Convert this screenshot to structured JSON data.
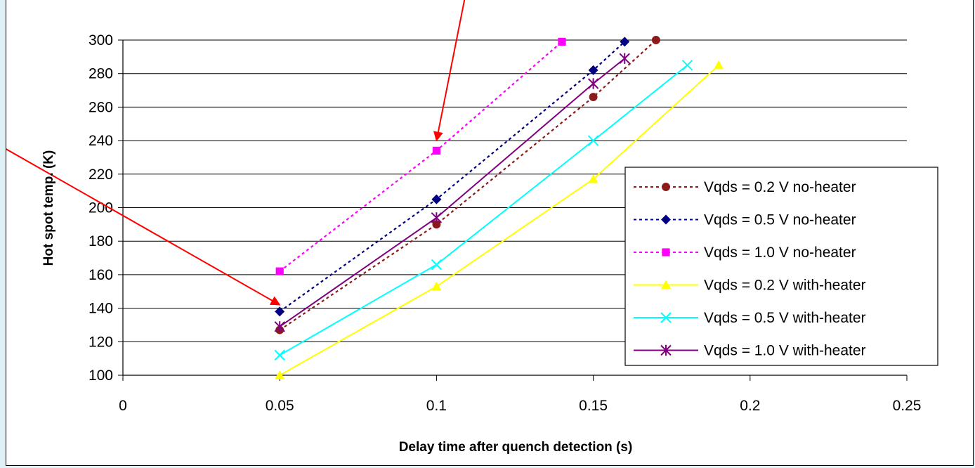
{
  "chart_data": {
    "type": "line",
    "xlabel": "Delay time after quench detection (s)",
    "ylabel": "Hot spot temp. (K)",
    "xlim": [
      0,
      0.25
    ],
    "ylim": [
      100,
      300
    ],
    "x_ticks": [
      "0",
      "0.05",
      "0.1",
      "0.15",
      "0.2",
      "0.25"
    ],
    "y_ticks": [
      "100",
      "120",
      "140",
      "160",
      "180",
      "200",
      "220",
      "240",
      "260",
      "280",
      "300"
    ],
    "grid": "horizontal major gridlines",
    "legend_position": "right",
    "series": [
      {
        "name": "Vqds = 0.2 V no-heater",
        "color": "#8b1a1a",
        "dash": "dotted",
        "marker": "circle",
        "x": [
          0.05,
          0.1,
          0.15,
          0.17
        ],
        "y": [
          127,
          190,
          266,
          300
        ]
      },
      {
        "name": "Vqds = 0.5 V no-heater",
        "color": "#000080",
        "dash": "dotted",
        "marker": "diamond",
        "x": [
          0.05,
          0.1,
          0.15,
          0.16
        ],
        "y": [
          138,
          205,
          282,
          299
        ]
      },
      {
        "name": "Vqds = 1.0 V no-heater",
        "color": "#ff00ff",
        "dash": "dotted",
        "marker": "square",
        "x": [
          0.05,
          0.1,
          0.14
        ],
        "y": [
          162,
          234,
          299
        ]
      },
      {
        "name": "Vqds = 0.2 V with-heater",
        "color": "#ffff00",
        "dash": "solid",
        "marker": "triangle",
        "x": [
          0.05,
          0.1,
          0.15,
          0.19
        ],
        "y": [
          100,
          153,
          217,
          285
        ]
      },
      {
        "name": "Vqds = 0.5 V with-heater",
        "color": "#00ffff",
        "dash": "solid",
        "marker": "x",
        "x": [
          0.05,
          0.1,
          0.15,
          0.18
        ],
        "y": [
          112,
          166,
          240,
          285
        ]
      },
      {
        "name": "Vqds = 1.0 V with-heater",
        "color": "#800080",
        "dash": "solid",
        "marker": "asterisk",
        "x": [
          0.05,
          0.1,
          0.15,
          0.16
        ],
        "y": [
          129,
          194,
          274,
          289
        ]
      }
    ],
    "annotations": [
      {
        "type": "arrow",
        "color": "#ff0000",
        "from": [
          -0.057,
          256
        ],
        "to": [
          0.05,
          142
        ]
      },
      {
        "type": "arrow",
        "color": "#ff0000",
        "from": [
          0.112,
          353
        ],
        "to": [
          0.1,
          240
        ]
      }
    ]
  }
}
